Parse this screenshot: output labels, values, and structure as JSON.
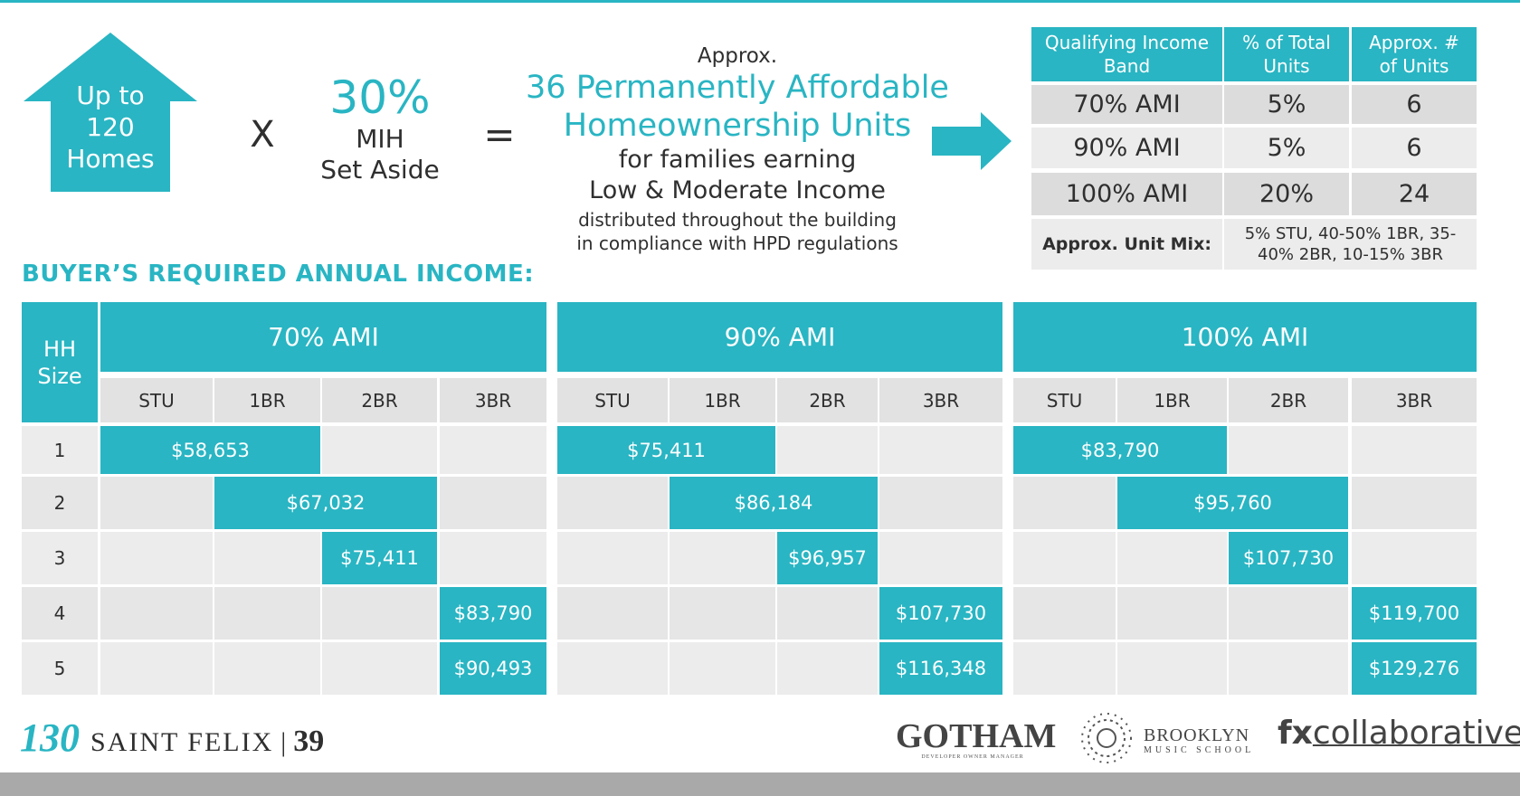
{
  "header": {
    "house": [
      "Up to",
      "120",
      "Homes"
    ],
    "operator_times": "X",
    "set_aside": {
      "percent": "30%",
      "label": [
        "MIH",
        "Set Aside"
      ]
    },
    "operator_equals": "=",
    "result": {
      "lead": "Approx.",
      "headline": [
        "36 Permanently Affordable",
        "Homeownership Units"
      ],
      "sub": [
        "for families earning",
        "Low & Moderate Income"
      ],
      "note": [
        "distributed throughout the building",
        "in compliance with HPD regulations"
      ]
    }
  },
  "summary_table": {
    "columns": [
      "Qualifying Income Band",
      "% of Total Units",
      "Approx. # of Units"
    ],
    "rows": [
      [
        "70% AMI",
        "5%",
        "6"
      ],
      [
        "90% AMI",
        "5%",
        "6"
      ],
      [
        "100% AMI",
        "20%",
        "24"
      ]
    ],
    "mix_label": "Approx. Unit Mix:",
    "mix_value": "5% STU, 40-50% 1BR, 35-40% 2BR, 10-15% 3BR"
  },
  "income_table": {
    "title": "BUYER’S REQUIRED ANNUAL INCOME:",
    "hh_header": "HH Size",
    "hh_sizes": [
      "1",
      "2",
      "3",
      "4",
      "5"
    ],
    "groups": [
      {
        "name": "70% AMI",
        "unit_types": [
          "STU",
          "1BR",
          "2BR",
          "3BR"
        ],
        "incomes": [
          "$58,653",
          "$67,032",
          "$75,411",
          "$83,790",
          "$90,493"
        ]
      },
      {
        "name": "90% AMI",
        "unit_types": [
          "STU",
          "1BR",
          "2BR",
          "3BR"
        ],
        "incomes": [
          "$75,411",
          "$86,184",
          "$96,957",
          "$107,730",
          "$116,348"
        ]
      },
      {
        "name": "100% AMI",
        "unit_types": [
          "STU",
          "1BR",
          "2BR",
          "3BR"
        ],
        "incomes": [
          "$83,790",
          "$95,760",
          "$107,730",
          "$119,700",
          "$129,276"
        ]
      }
    ]
  },
  "footer": {
    "number": "130",
    "name": "SAINT FELIX",
    "separator": "|",
    "page": "39",
    "logos": {
      "gotham": "GOTHAM",
      "gotham_tag": "DEVELOPER OWNER MANAGER",
      "brooklyn": "BROOKLYN",
      "brooklyn_sub": "MUSIC SCHOOL",
      "fx": "fx",
      "fx_rest": "collaborative"
    }
  }
}
